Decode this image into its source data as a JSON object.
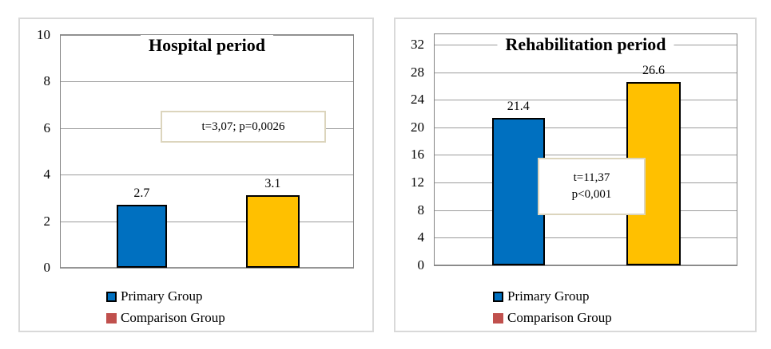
{
  "chart_data": [
    {
      "type": "bar",
      "title": "Hospital period",
      "categories": [
        "Primary Group",
        "Comparison Group"
      ],
      "values": [
        2.7,
        3.1
      ],
      "bar_labels": [
        "2.7",
        "3.1"
      ],
      "bar_colors": [
        "#0070C0",
        "#FFC000"
      ],
      "ylim": [
        0,
        10
      ],
      "y_ticks": [
        0,
        2,
        4,
        6,
        8,
        10
      ],
      "grid": true,
      "legend_position": "bottom",
      "annotation_line1": "t=3,07; p=0,0026",
      "annotation_line2": "",
      "legend": [
        {
          "label": "Primary Group",
          "color": "#0070C0",
          "border": "#000000"
        },
        {
          "label": "Comparison Group",
          "color": "#C0504D",
          "border": "#C0504D"
        }
      ]
    },
    {
      "type": "bar",
      "title": "Rehabilitation period",
      "categories": [
        "Primary Group",
        "Comparison Group"
      ],
      "values": [
        21.4,
        26.6
      ],
      "bar_labels": [
        "21.4",
        "26.6"
      ],
      "bar_colors": [
        "#0070C0",
        "#FFC000"
      ],
      "ylim": [
        0,
        33.5
      ],
      "y_ticks": [
        0,
        4,
        8,
        12,
        16,
        20,
        24,
        28,
        32
      ],
      "grid": true,
      "legend_position": "bottom",
      "annotation_line1": "t=11,37",
      "annotation_line2": "p<0,001",
      "legend": [
        {
          "label": "Primary Group",
          "color": "#0070C0",
          "border": "#000000"
        },
        {
          "label": "Comparison Group",
          "color": "#C0504D",
          "border": "#C0504D"
        }
      ]
    }
  ],
  "colors": {
    "bar_blue": "#0070C0",
    "bar_yellow": "#FFC000",
    "legend_red": "#C0504D",
    "gridline": "#9B9B9B",
    "plot_border": "#848484",
    "panel_border": "#D9D9D9",
    "annotation_border": "#DCD5BD"
  }
}
